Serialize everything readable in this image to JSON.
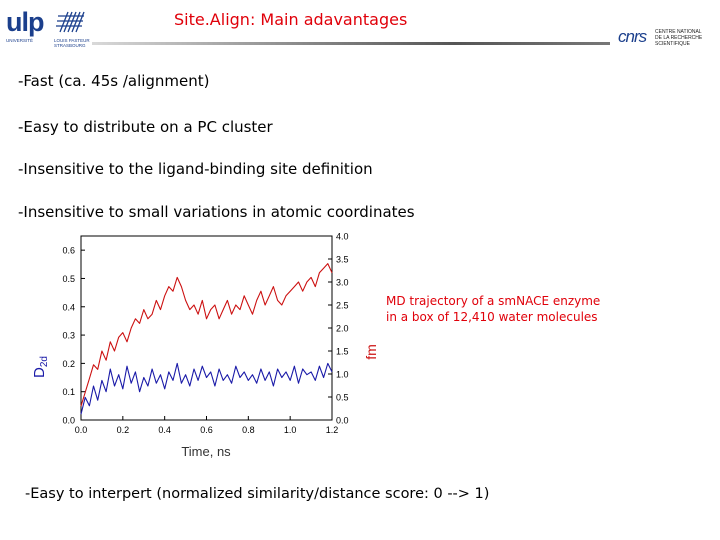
{
  "header": {
    "title": "Site.Align: Main adavantages",
    "left_logo": {
      "text": "ulp",
      "line1": "UNIVERSITÉ",
      "line2": "LOUIS PASTEUR",
      "line3": "STRASBOURG",
      "color": "#1b3f8c"
    },
    "right_logo": {
      "text": "cnrs",
      "line1": "CENTRE NATIONAL",
      "line2": "DE LA RECHERCHE",
      "line3": "SCIENTIFIQUE"
    },
    "title_color": "#e0000a"
  },
  "bullets": [
    "-Fast  (ca. 45s /alignment)",
    "-Easy to distribute on a PC cluster",
    "-Insensitive to the ligand-binding site definition",
    "-Insensitive to small variations in atomic coordinates",
    "-Easy to interpert (normalized similarity/distance score: 0 --> 1)"
  ],
  "annotation": {
    "line1": "MD trajectory of a smNACE enzyme",
    "line2": "in a box of 12,410 water molecules"
  },
  "chart_data": {
    "type": "line",
    "xlabel": "Time, ns",
    "ylabel_left": "D",
    "ylabel_left_sub": "2d",
    "ylabel_right": "fm",
    "xlim": [
      0.0,
      1.2
    ],
    "ylim_left": [
      0.0,
      0.65
    ],
    "ylim_right": [
      0.0,
      4.0
    ],
    "x_ticks": [
      "0.0",
      "0.2",
      "0.4",
      "0.6",
      "0.8",
      "1.0",
      "1.2"
    ],
    "y_ticks_left": [
      "0.0",
      "0.1",
      "0.2",
      "0.3",
      "0.4",
      "0.5",
      "0.6"
    ],
    "y_ticks_right": [
      "0.0",
      "0.5",
      "1.0",
      "1.5",
      "2.0",
      "2.5",
      "3.0",
      "3.5",
      "4.0"
    ],
    "series": [
      {
        "axis": "left",
        "color": "#1a1aa8",
        "x": [
          0.0,
          0.02,
          0.04,
          0.06,
          0.08,
          0.1,
          0.12,
          0.14,
          0.16,
          0.18,
          0.2,
          0.22,
          0.24,
          0.26,
          0.28,
          0.3,
          0.32,
          0.34,
          0.36,
          0.38,
          0.4,
          0.42,
          0.44,
          0.46,
          0.48,
          0.5,
          0.52,
          0.54,
          0.56,
          0.58,
          0.6,
          0.62,
          0.64,
          0.66,
          0.68,
          0.7,
          0.72,
          0.74,
          0.76,
          0.78,
          0.8,
          0.82,
          0.84,
          0.86,
          0.88,
          0.9,
          0.92,
          0.94,
          0.96,
          0.98,
          1.0,
          1.02,
          1.04,
          1.06,
          1.08,
          1.1,
          1.12,
          1.14,
          1.16,
          1.18,
          1.2
        ],
        "values": [
          0.02,
          0.08,
          0.05,
          0.12,
          0.07,
          0.14,
          0.1,
          0.18,
          0.12,
          0.16,
          0.11,
          0.19,
          0.13,
          0.17,
          0.1,
          0.15,
          0.12,
          0.18,
          0.13,
          0.16,
          0.11,
          0.17,
          0.14,
          0.2,
          0.13,
          0.16,
          0.12,
          0.18,
          0.14,
          0.19,
          0.15,
          0.17,
          0.12,
          0.18,
          0.14,
          0.16,
          0.13,
          0.19,
          0.15,
          0.17,
          0.14,
          0.16,
          0.13,
          0.18,
          0.14,
          0.17,
          0.12,
          0.18,
          0.15,
          0.17,
          0.14,
          0.19,
          0.13,
          0.18,
          0.16,
          0.17,
          0.14,
          0.19,
          0.15,
          0.2,
          0.17
        ]
      },
      {
        "axis": "right",
        "color": "#cc1111",
        "x": [
          0.0,
          0.02,
          0.04,
          0.06,
          0.08,
          0.1,
          0.12,
          0.14,
          0.16,
          0.18,
          0.2,
          0.22,
          0.24,
          0.26,
          0.28,
          0.3,
          0.32,
          0.34,
          0.36,
          0.38,
          0.4,
          0.42,
          0.44,
          0.46,
          0.48,
          0.5,
          0.52,
          0.54,
          0.56,
          0.58,
          0.6,
          0.62,
          0.64,
          0.66,
          0.68,
          0.7,
          0.72,
          0.74,
          0.76,
          0.78,
          0.8,
          0.82,
          0.84,
          0.86,
          0.88,
          0.9,
          0.92,
          0.94,
          0.96,
          0.98,
          1.0,
          1.02,
          1.04,
          1.06,
          1.08,
          1.1,
          1.12,
          1.14,
          1.16,
          1.18,
          1.2
        ],
        "values": [
          0.3,
          0.6,
          0.9,
          1.2,
          1.1,
          1.5,
          1.3,
          1.7,
          1.5,
          1.8,
          1.9,
          1.7,
          2.0,
          2.2,
          2.1,
          2.4,
          2.2,
          2.3,
          2.6,
          2.4,
          2.7,
          2.9,
          2.8,
          3.1,
          2.9,
          2.6,
          2.4,
          2.5,
          2.3,
          2.6,
          2.2,
          2.4,
          2.5,
          2.2,
          2.4,
          2.6,
          2.3,
          2.5,
          2.4,
          2.7,
          2.5,
          2.3,
          2.6,
          2.8,
          2.5,
          2.7,
          2.9,
          2.6,
          2.5,
          2.7,
          2.8,
          2.9,
          3.0,
          2.8,
          3.0,
          3.1,
          2.9,
          3.2,
          3.3,
          3.4,
          3.2
        ]
      }
    ]
  }
}
